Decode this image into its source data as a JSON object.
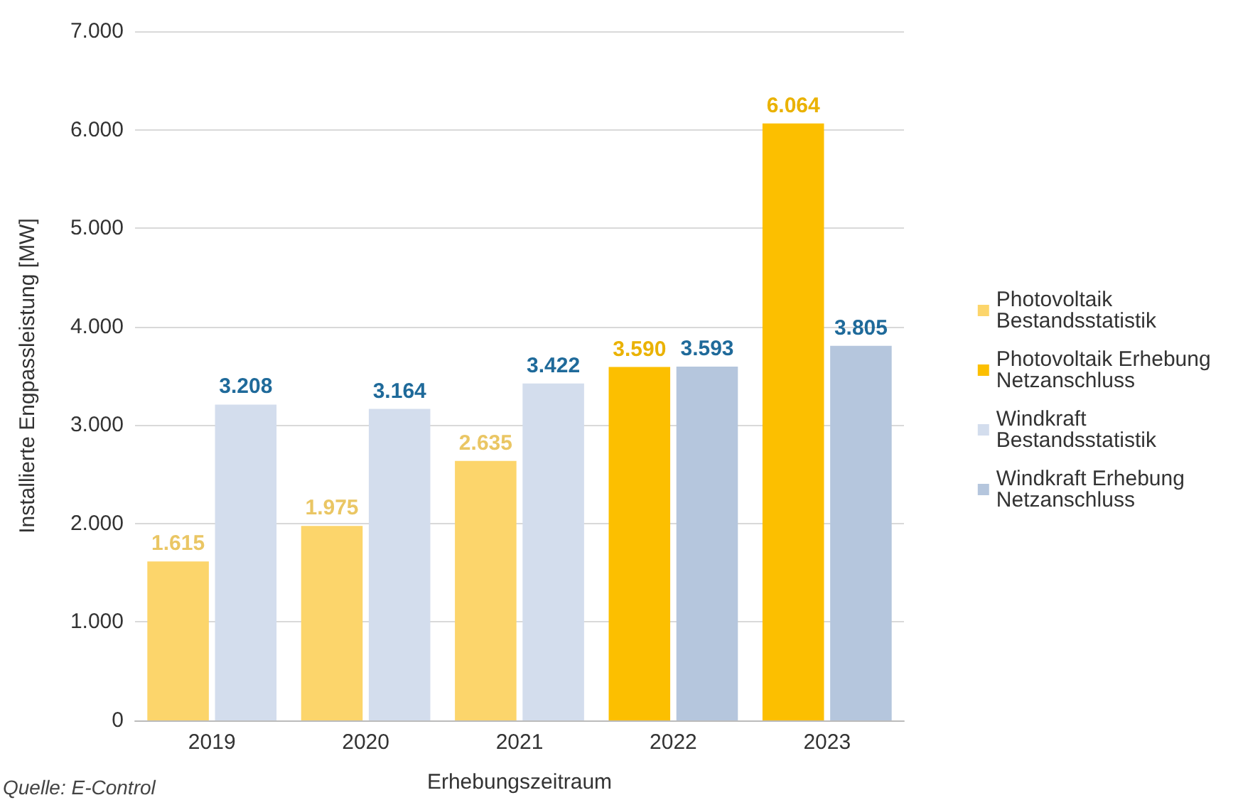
{
  "chart_data": {
    "type": "bar",
    "xlabel": "Erhebungszeitraum",
    "ylabel": "Installierte Engpassleistung [MW]",
    "categories": [
      "2019",
      "2020",
      "2021",
      "2022",
      "2023"
    ],
    "series": [
      {
        "name": "Photovoltaik Bestandsstatistik",
        "color": "#fcd56b",
        "values": [
          1615,
          1975,
          2635,
          null,
          null
        ],
        "value_labels": [
          "1.615",
          "1.975",
          "2.635",
          null,
          null
        ]
      },
      {
        "name": "Photovoltaik Erhebung Netzanschluss",
        "color": "#fcbf00",
        "values": [
          null,
          null,
          null,
          3590,
          6064
        ],
        "value_labels": [
          null,
          null,
          null,
          "3.590",
          "6.064"
        ]
      },
      {
        "name": "Windkraft Bestandsstatistik",
        "color": "#d3dded",
        "values": [
          3208,
          3164,
          3422,
          null,
          null
        ],
        "value_labels": [
          "3.208",
          "3.164",
          "3.422",
          null,
          null
        ]
      },
      {
        "name": "Windkraft Erhebung Netzanschluss",
        "color": "#b5c6dd",
        "values": [
          null,
          null,
          null,
          3593,
          3805
        ],
        "value_labels": [
          null,
          null,
          null,
          "3.593",
          "3.805"
        ]
      }
    ],
    "ylim": [
      0,
      7000
    ],
    "yticks": [
      {
        "value": 0,
        "label": "0"
      },
      {
        "value": 1000,
        "label": "1.000"
      },
      {
        "value": 2000,
        "label": "2.000"
      },
      {
        "value": 3000,
        "label": "3.000"
      },
      {
        "value": 4000,
        "label": "4.000"
      },
      {
        "value": 5000,
        "label": "5.000"
      },
      {
        "value": 6000,
        "label": "6.000"
      },
      {
        "value": 7000,
        "label": "7.000"
      }
    ],
    "grid": "y",
    "legend": "right",
    "annotations": [
      "Quelle: E-Control"
    ]
  }
}
